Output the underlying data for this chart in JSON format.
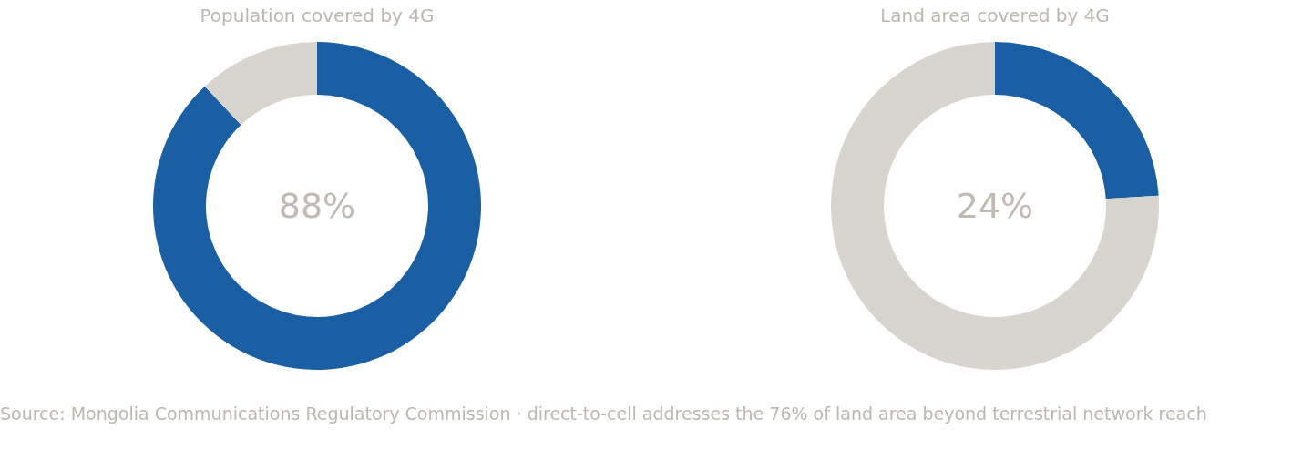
{
  "chart_data": [
    {
      "type": "donut",
      "title": "Population covered by 4G",
      "categories": [
        null,
        null
      ],
      "values": [
        88,
        12
      ],
      "colors": [
        "#1a5fa3",
        "#d8d5ce"
      ],
      "annotations": [
        "88%"
      ]
    },
    {
      "type": "donut",
      "title": "Land area covered by 4G",
      "categories": [
        null,
        null
      ],
      "values": [
        24,
        76
      ],
      "colors": [
        "#1a5fa3",
        "#d8d5ce"
      ],
      "annotations": [
        "24%",
        "Source: Mongolia Communications Regulatory Commission · direct-to-cell addresses the 76% of land area beyond terrestrial network reach"
      ]
    }
  ]
}
